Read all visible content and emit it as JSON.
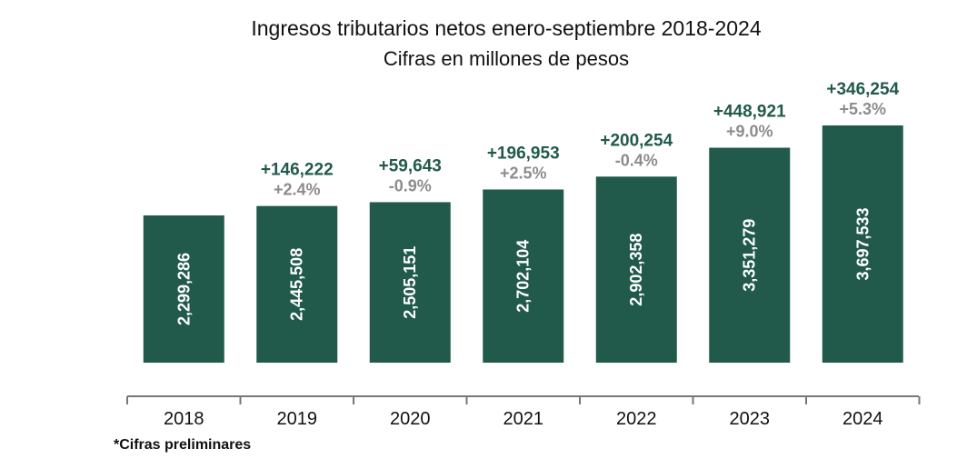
{
  "chart_data": {
    "type": "bar",
    "title": "Ingresos tributarios netos enero-septiembre 2018-2024",
    "subtitle": "Cifras en millones de pesos",
    "categories": [
      "2018",
      "2019",
      "2020",
      "2021",
      "2022",
      "2023",
      "2024"
    ],
    "values": [
      2299286,
      2445508,
      2505151,
      2702104,
      2902358,
      3351279,
      3697533
    ],
    "value_labels": [
      "2,299,286",
      "2,445,508",
      "2,505,151",
      "2,702,104",
      "2,902,358",
      "3,351,279",
      "3,697,533"
    ],
    "change_abs": [
      "",
      "+146,222",
      "+59,643",
      "+196,953",
      "+200,254",
      "+448,921",
      "+346,254"
    ],
    "change_pct": [
      "",
      "+2.4%",
      "-0.9%",
      "+2.5%",
      "-0.4%",
      "+9.0%",
      "+5.3%"
    ],
    "xlabel": "",
    "ylabel": "",
    "grid": false,
    "legend": "none",
    "note": "*Cifras preliminares",
    "colors": {
      "bar": "#215a4b",
      "abs_change": "#215a4b",
      "pct_change": "#8c8c8c",
      "bar_label": "#ffffff"
    }
  }
}
